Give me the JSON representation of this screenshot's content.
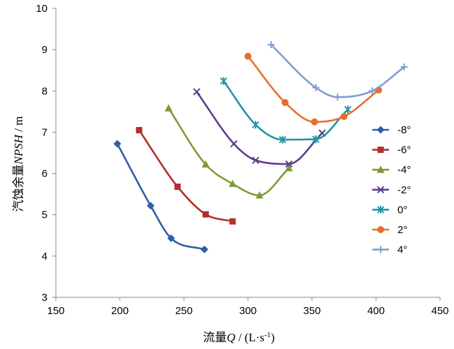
{
  "chart_data": {
    "type": "line",
    "title": "",
    "xlabel_prefix": "流量",
    "xlabel_symbol": "Q",
    "xlabel_unit": " / (L·s",
    "xlabel_unit_exp": "-1",
    "xlabel_unit_close": ")",
    "ylabel_prefix": "汽蚀余量",
    "ylabel_symbol": "NPSH",
    "ylabel_unit": " / m",
    "xlim": [
      150,
      450
    ],
    "ylim": [
      3,
      10
    ],
    "xticks": [
      150,
      200,
      250,
      300,
      350,
      400,
      450
    ],
    "yticks": [
      3,
      4,
      5,
      6,
      7,
      8,
      9,
      10
    ],
    "legend_position": "right",
    "series": [
      {
        "name": "-8°",
        "color": "#2e5ea8",
        "marker": "diamond",
        "x": [
          198,
          224,
          240,
          266
        ],
        "y": [
          6.72,
          5.22,
          4.43,
          4.16
        ]
      },
      {
        "name": "-6°",
        "color": "#b0302c",
        "marker": "square",
        "x": [
          215,
          245,
          267,
          288
        ],
        "y": [
          7.05,
          5.68,
          5.01,
          4.84
        ]
      },
      {
        "name": "-4°",
        "color": "#7d9c34",
        "marker": "triangle",
        "x": [
          238,
          267,
          288,
          309,
          332
        ],
        "y": [
          7.58,
          6.22,
          5.75,
          5.47,
          6.13
        ]
      },
      {
        "name": "-2°",
        "color": "#5f3d8a",
        "marker": "x",
        "x": [
          260,
          289,
          306,
          332,
          358
        ],
        "y": [
          7.98,
          6.72,
          6.32,
          6.23,
          6.98
        ]
      },
      {
        "name": "0°",
        "color": "#2196a4",
        "marker": "asterisk",
        "x": [
          281,
          306,
          327,
          353,
          378
        ],
        "y": [
          8.24,
          7.18,
          6.82,
          6.83,
          7.55
        ]
      },
      {
        "name": "2°",
        "color": "#e66f2e",
        "marker": "circle",
        "x": [
          300,
          329,
          352,
          375,
          402
        ],
        "y": [
          8.84,
          7.72,
          7.25,
          7.38,
          8.02
        ]
      },
      {
        "name": "4°",
        "color": "#7f9fcd",
        "marker": "plus",
        "x": [
          318,
          353,
          370,
          397,
          422
        ],
        "y": [
          9.12,
          8.08,
          7.85,
          8.0,
          8.58
        ]
      }
    ]
  }
}
